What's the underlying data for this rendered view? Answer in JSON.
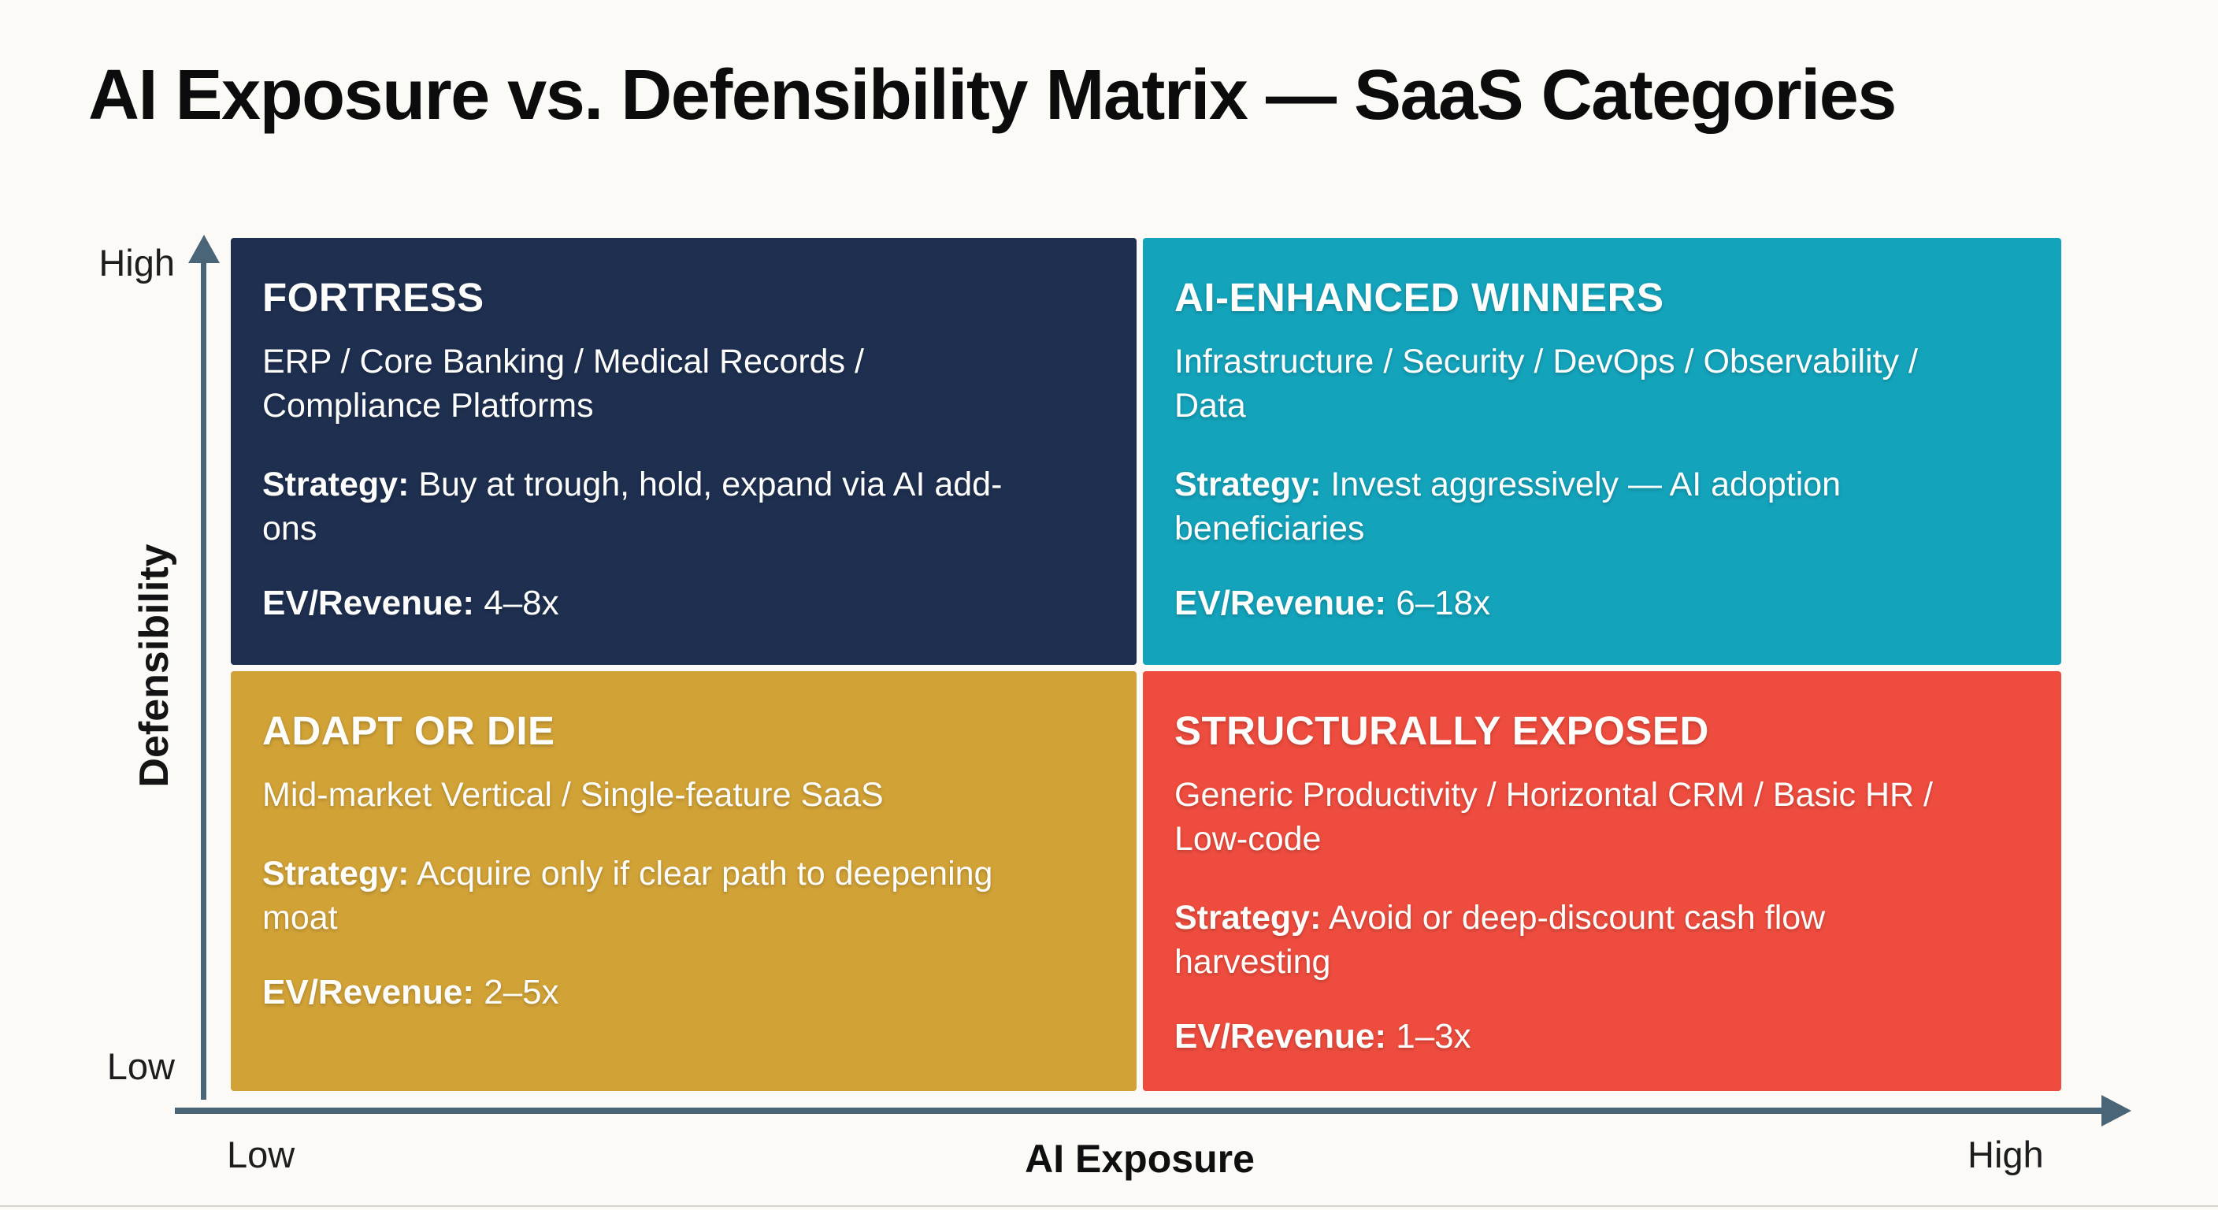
{
  "title": "AI Exposure vs. Defensibility Matrix — SaaS Categories",
  "y_axis": {
    "label": "Defensibility",
    "top": "High",
    "bottom": "Low"
  },
  "x_axis": {
    "label": "AI Exposure",
    "left": "Low",
    "right": "High"
  },
  "quadrants": [
    {
      "position": "top-left",
      "name": "FORTRESS",
      "categories": "ERP / Core Banking / Medical Records / Compliance Platforms",
      "strategy_label": "Strategy:",
      "strategy": "Buy at trough, hold, expand via AI add-ons",
      "ev_label": "EV/Revenue:",
      "ev_value": "4–8x",
      "color": "#1e2f50"
    },
    {
      "position": "top-right",
      "name": "AI-ENHANCED WINNERS",
      "categories": "Infrastructure / Security / DevOps / Observability / Data",
      "strategy_label": "Strategy:",
      "strategy": "Invest aggressively — AI adoption beneficiaries",
      "ev_label": "EV/Revenue:",
      "ev_value": "6–18x",
      "color": "#13a3bb"
    },
    {
      "position": "bottom-left",
      "name": "ADAPT OR DIE",
      "categories": "Mid-market Vertical / Single-feature SaaS",
      "strategy_label": "Strategy:",
      "strategy": "Acquire only if clear path to deepening moat",
      "ev_label": "EV/Revenue:",
      "ev_value": "2–5x",
      "color": "#d1a236"
    },
    {
      "position": "bottom-right",
      "name": "STRUCTURALLY EXPOSED",
      "categories": "Generic Productivity / Horizontal CRM / Basic HR / Low-code",
      "strategy_label": "Strategy:",
      "strategy": "Avoid or deep-discount cash flow harvesting",
      "ev_label": "EV/Revenue:",
      "ev_value": "1–3x",
      "color": "#ee4c3e"
    }
  ],
  "colors": {
    "fortress": "#1e2f50",
    "ai_enhanced_winners": "#13a3bb",
    "adapt_or_die": "#d1a236",
    "structurally_exposed": "#ee4c3e",
    "axis": "#4b6578",
    "background": "#fbfaf7",
    "quadrant_text": "#fdfdfc",
    "title_text": "#0c0c0c"
  }
}
